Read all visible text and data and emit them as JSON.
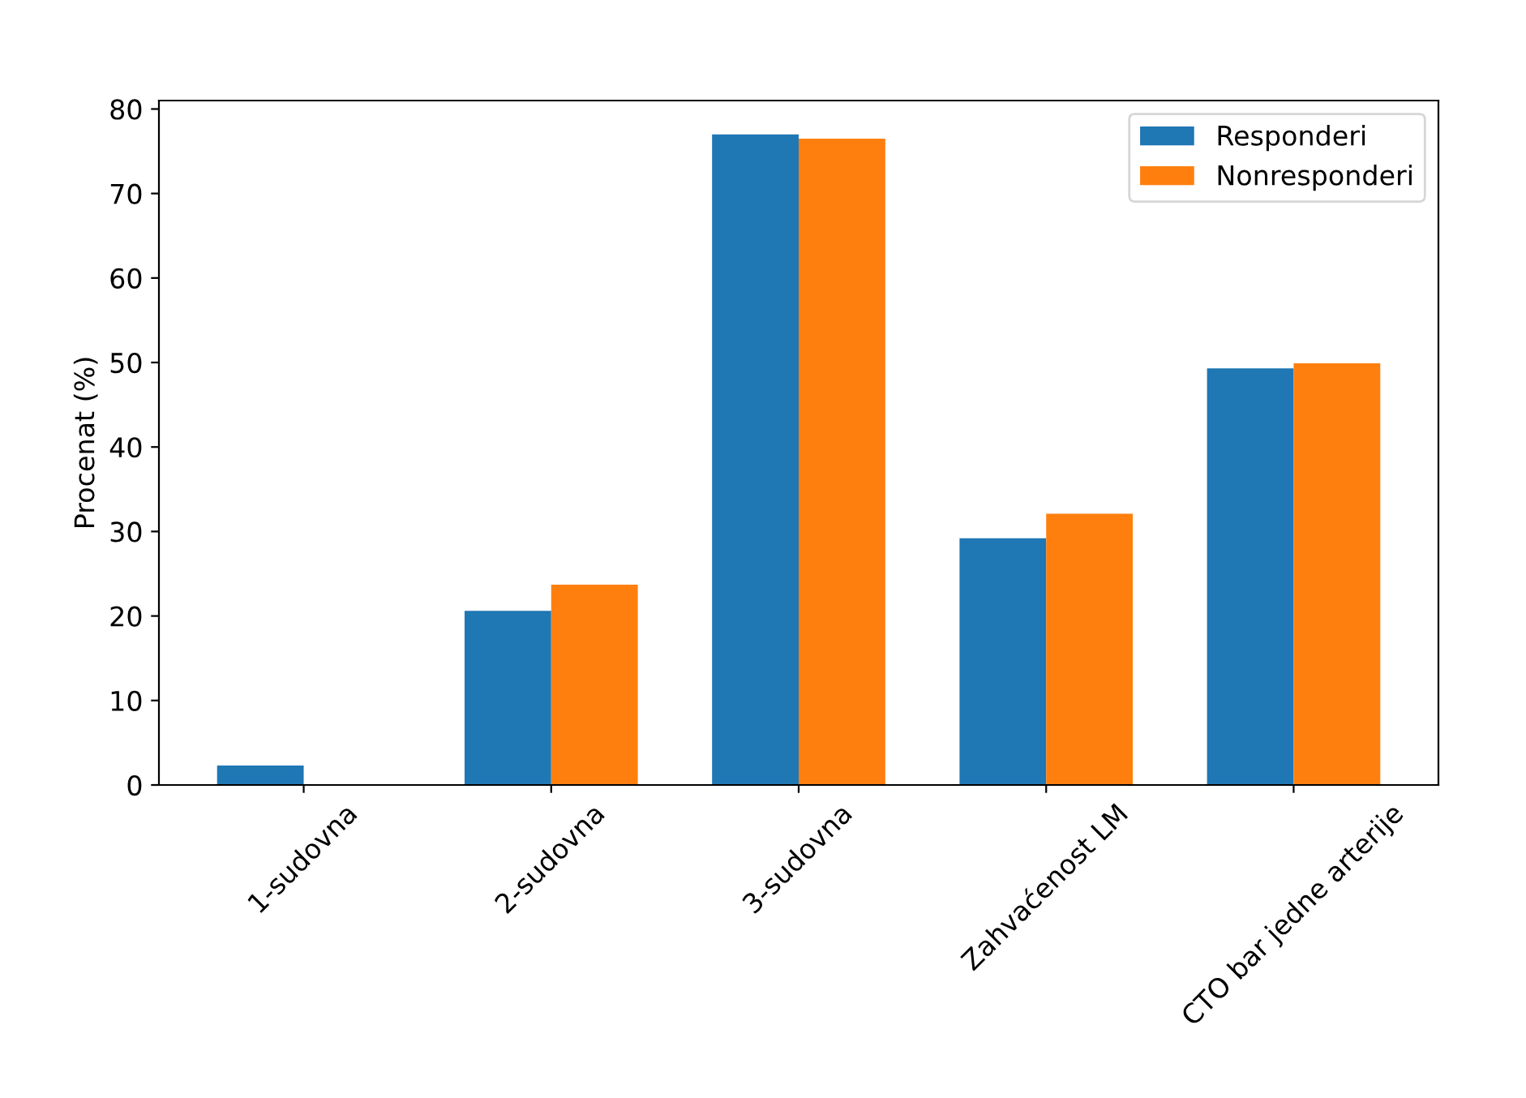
{
  "chart_data": {
    "type": "bar",
    "ylabel": "Procenat (%)",
    "categories": [
      "1-sudovna",
      "2-sudovna",
      "3-sudovna",
      "Zahvaćenost LM",
      "CTO bar jedne arterije"
    ],
    "series": [
      {
        "name": "Responderi",
        "color": "#1f77b4",
        "values": [
          2.3,
          20.6,
          77.0,
          29.2,
          49.3
        ]
      },
      {
        "name": "Nonresponderi",
        "color": "#ff7f0e",
        "values": [
          0,
          23.7,
          76.5,
          32.1,
          49.9
        ]
      }
    ],
    "ylim": [
      0,
      81
    ],
    "yticks": [
      0,
      10,
      20,
      30,
      40,
      50,
      60,
      70,
      80
    ],
    "legend": "top right",
    "grid": false
  }
}
